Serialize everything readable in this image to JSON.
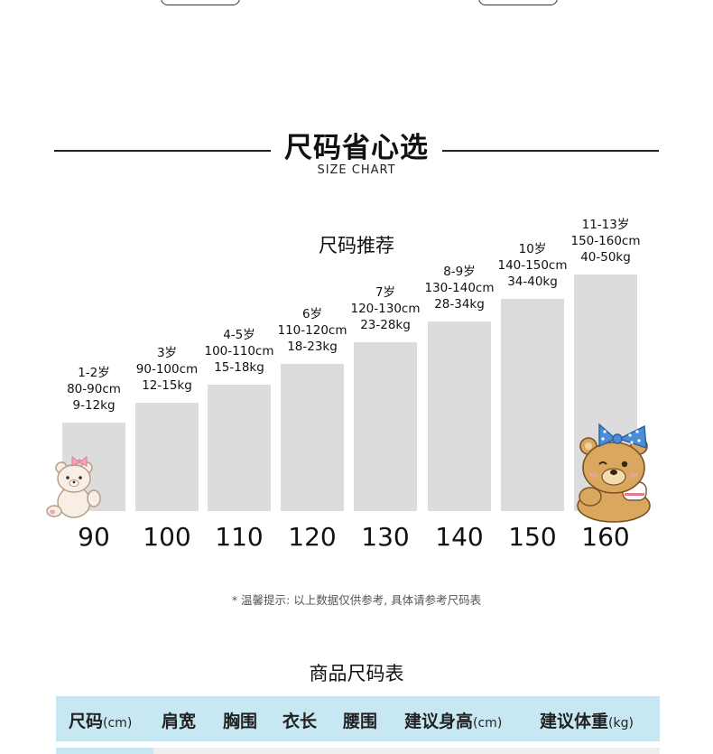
{
  "header": {
    "title": "尺码省心选",
    "subtitle": "SIZE CHART"
  },
  "recommendation": {
    "title": "尺码推荐",
    "bars": [
      {
        "age": "1-2岁",
        "height": "80-90cm",
        "weight": "9-12kg",
        "size": "90"
      },
      {
        "age": "3岁",
        "height": "90-100cm",
        "weight": "12-15kg",
        "size": "100"
      },
      {
        "age": "4-5岁",
        "height": "100-110cm",
        "weight": "15-18kg",
        "size": "110"
      },
      {
        "age": "6岁",
        "height": "110-120cm",
        "weight": "18-23kg",
        "size": "120"
      },
      {
        "age": "7岁",
        "height": "120-130cm",
        "weight": "23-28kg",
        "size": "130"
      },
      {
        "age": "8-9岁",
        "height": "130-140cm",
        "weight": "28-34kg",
        "size": "140"
      },
      {
        "age": "10岁",
        "height": "140-150cm",
        "weight": "34-40kg",
        "size": "150"
      },
      {
        "age": "11-13岁",
        "height": "150-160cm",
        "weight": "40-50kg",
        "size": "160"
      }
    ],
    "notice": "* 温馨提示:  以上数据仅供参考, 具体请参考尺码表"
  },
  "size_table": {
    "title": "商品尺码表",
    "columns": [
      {
        "label": "尺码",
        "unit": "(cm)"
      },
      {
        "label": "肩宽",
        "unit": ""
      },
      {
        "label": "胸围",
        "unit": ""
      },
      {
        "label": "衣长",
        "unit": ""
      },
      {
        "label": "腰围",
        "unit": ""
      },
      {
        "label": "建议身高",
        "unit": "(cm)"
      },
      {
        "label": "建议体重",
        "unit": "(kg)"
      }
    ]
  },
  "colors": {
    "bar": "#dcdcdc",
    "table_header": "#c7e8f2",
    "bow_pink": "#f3a6b8",
    "bow_blue": "#4a8fd6",
    "bear_tan": "#d9a85e"
  },
  "icons": [
    "bear-pink-bow-icon",
    "bear-blue-bow-icon"
  ]
}
